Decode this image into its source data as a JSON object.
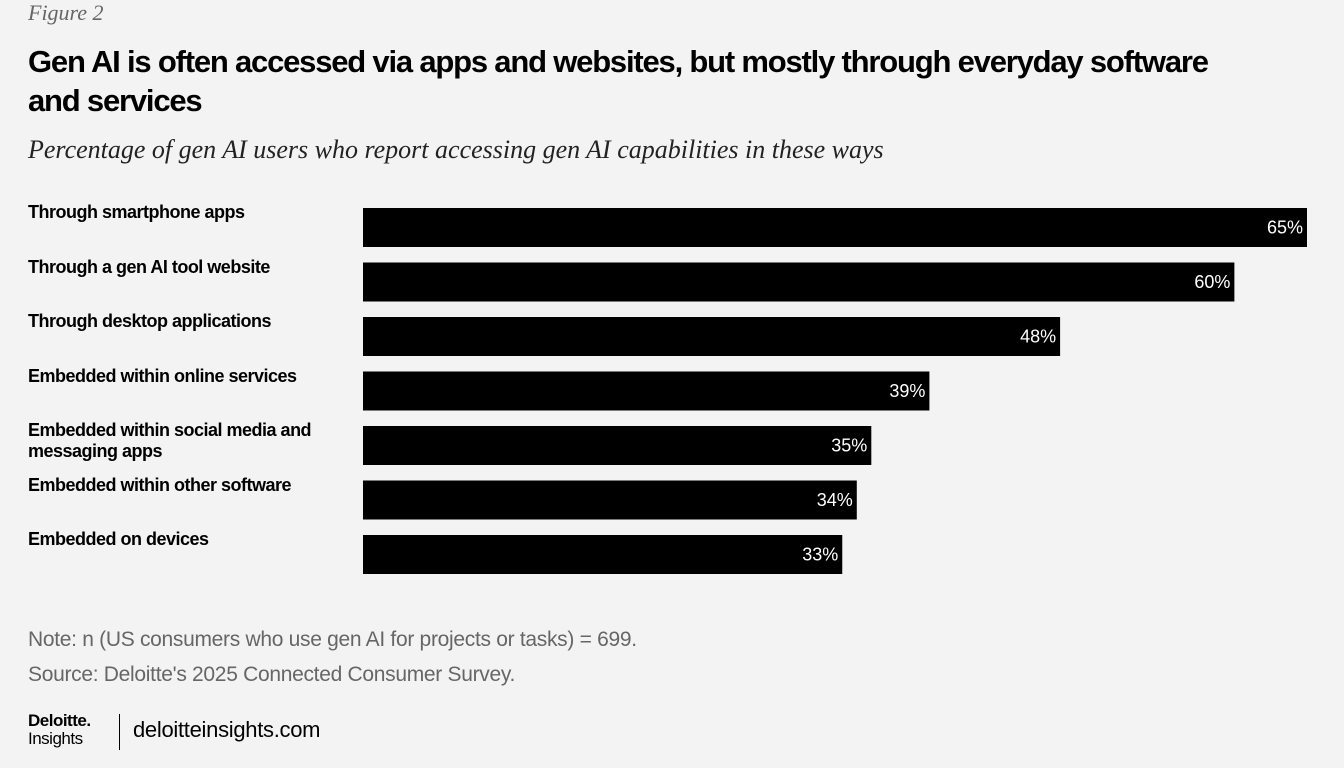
{
  "figure_label": "Figure 2",
  "chart_data": {
    "type": "bar",
    "orientation": "horizontal",
    "title": "Gen AI is often accessed via apps and websites, but mostly through everyday software and services",
    "subtitle": "Percentage of gen AI users who report accessing gen AI capabilities in these ways",
    "categories": [
      "Through smartphone apps",
      "Through a gen AI tool website",
      "Through desktop applications",
      "Embedded within online services",
      "Embedded within social media and messaging apps",
      "Embedded within other software",
      "Embedded on devices"
    ],
    "values": [
      65,
      60,
      48,
      39,
      35,
      34,
      33
    ],
    "value_labels": [
      "65%",
      "60%",
      "48%",
      "39%",
      "35%",
      "34%",
      "33%"
    ],
    "color": "#000000"
  },
  "note": "Note: n (US consumers who use gen AI for projects or tasks) = 699.",
  "source": "Source: Deloitte's 2025 Connected Consumer Survey.",
  "footer": {
    "brand": "Deloitte.",
    "brand_sub": "Insights",
    "url": "deloitteinsights.com"
  }
}
